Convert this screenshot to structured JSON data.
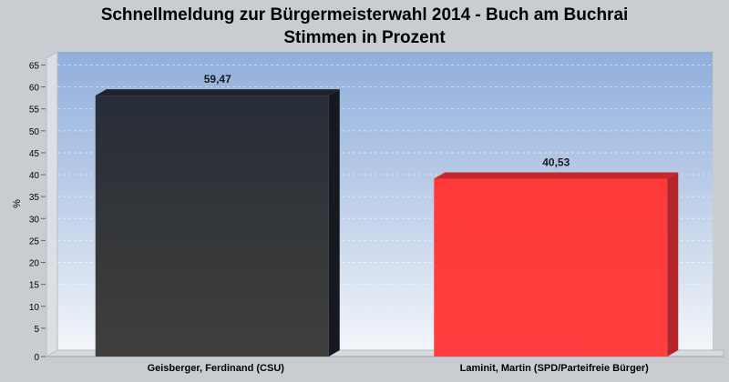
{
  "chart_data": {
    "type": "bar",
    "title": "Schnellmeldung zur Bürgermeisterwahl 2014 - Buch am Buchrai",
    "subtitle": "Stimmen in Prozent",
    "ylabel": "%",
    "xlabel": "",
    "ylim": [
      0,
      68
    ],
    "yticks": [
      0,
      5,
      10,
      15,
      20,
      25,
      30,
      35,
      40,
      45,
      50,
      55,
      60,
      65
    ],
    "grid": true,
    "categories": [
      "Geisberger, Ferdinand (CSU)",
      "Laminit, Martin (SPD/Parteifreie Bürger)"
    ],
    "values": [
      59.47,
      40.53
    ],
    "value_labels": [
      "59,47",
      "40,53"
    ],
    "colors": [
      "#33373f",
      "#ff3838"
    ]
  }
}
